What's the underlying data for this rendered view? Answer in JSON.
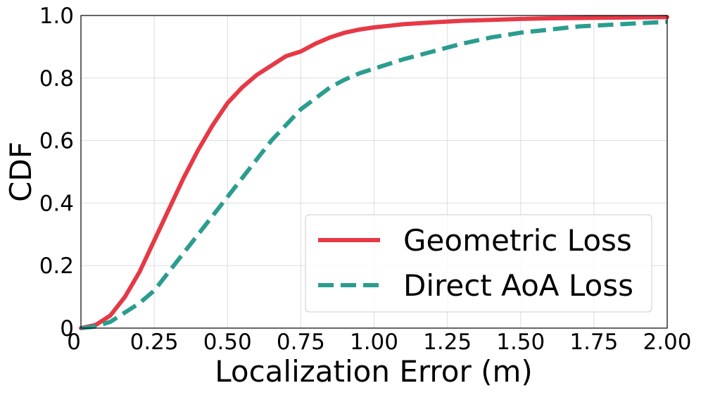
{
  "chart_data": {
    "type": "line",
    "title": "",
    "xlabel": "Localization Error (m)",
    "ylabel": "CDF",
    "xlim": [
      0,
      2.0
    ],
    "ylim": [
      0,
      1.0
    ],
    "x_ticks": [
      "0",
      "0.25",
      "0.50",
      "0.75",
      "1.00",
      "1.25",
      "1.50",
      "1.75",
      "2.00"
    ],
    "y_ticks": [
      "0",
      "0.2",
      "0.4",
      "0.6",
      "0.8",
      "1.0"
    ],
    "grid": true,
    "legend_position": "lower-right",
    "series": [
      {
        "name": "Geometric Loss",
        "color": "#e63946",
        "style": "solid",
        "x": [
          0,
          0.05,
          0.1,
          0.15,
          0.2,
          0.25,
          0.3,
          0.35,
          0.4,
          0.45,
          0.5,
          0.55,
          0.6,
          0.65,
          0.7,
          0.75,
          0.8,
          0.85,
          0.9,
          0.95,
          1.0,
          1.05,
          1.1,
          1.2,
          1.3,
          1.4,
          1.5,
          1.6,
          1.7,
          1.8,
          1.9,
          2.0
        ],
        "y": [
          0,
          0.01,
          0.04,
          0.1,
          0.18,
          0.28,
          0.38,
          0.48,
          0.57,
          0.65,
          0.72,
          0.77,
          0.81,
          0.84,
          0.87,
          0.885,
          0.91,
          0.93,
          0.945,
          0.955,
          0.962,
          0.967,
          0.972,
          0.978,
          0.983,
          0.986,
          0.989,
          0.991,
          0.992,
          0.993,
          0.994,
          0.995
        ]
      },
      {
        "name": "Direct AoA Loss",
        "color": "#2a9d8f",
        "style": "dashed",
        "x": [
          0,
          0.05,
          0.1,
          0.15,
          0.2,
          0.25,
          0.3,
          0.35,
          0.4,
          0.45,
          0.5,
          0.55,
          0.6,
          0.65,
          0.7,
          0.75,
          0.8,
          0.85,
          0.9,
          0.95,
          1.0,
          1.1,
          1.2,
          1.3,
          1.4,
          1.5,
          1.6,
          1.7,
          1.8,
          1.9,
          2.0
        ],
        "y": [
          0,
          0.005,
          0.02,
          0.05,
          0.08,
          0.12,
          0.18,
          0.24,
          0.3,
          0.36,
          0.42,
          0.48,
          0.54,
          0.6,
          0.65,
          0.7,
          0.735,
          0.77,
          0.795,
          0.815,
          0.83,
          0.86,
          0.885,
          0.91,
          0.93,
          0.945,
          0.955,
          0.965,
          0.97,
          0.975,
          0.98
        ]
      }
    ]
  }
}
